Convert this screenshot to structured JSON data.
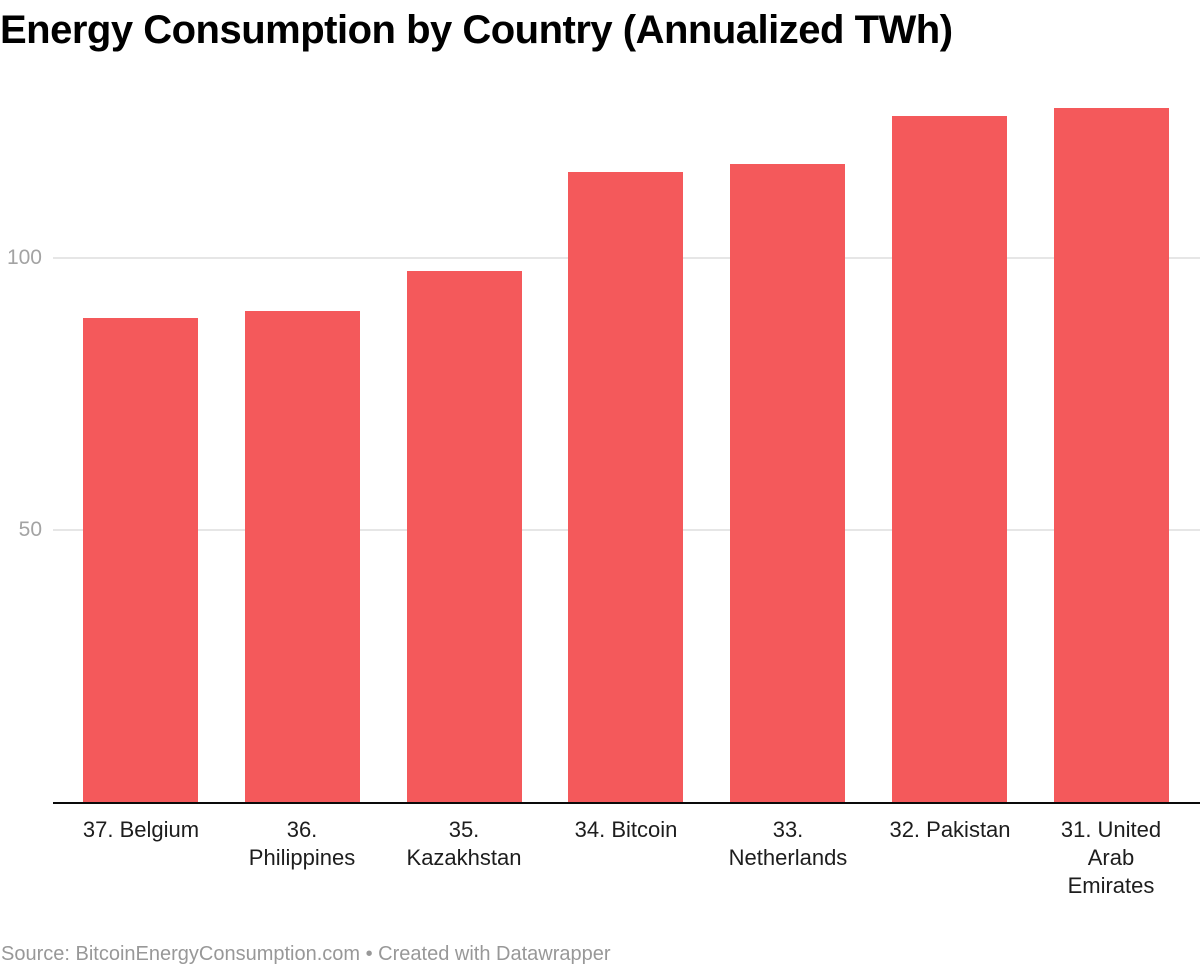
{
  "title": "Energy Consumption by Country (Annualized TWh)",
  "source_line": "Source: BitcoinEnergyConsumption.com • Created with Datawrapper",
  "colors": {
    "bar": "#f4595b",
    "axis_line": "#0a0a0a",
    "gridline": "#e6e6e6",
    "tick_label": "#a3a3a3",
    "x_label": "#1d1d1d",
    "title": "#000000",
    "source": "#989898",
    "background": "#ffffff"
  },
  "chart_data": {
    "type": "bar",
    "title": "Energy Consumption by Country (Annualized TWh)",
    "categories": [
      "37. Belgium",
      "36. Philippines",
      "35. Kazakhstan",
      "34. Bitcoin",
      "33. Netherlands",
      "32. Pakistan",
      "31. United Arab Emirates"
    ],
    "values": [
      88.9,
      90.3,
      97.7,
      115.9,
      117.2,
      126.1,
      127.6
    ],
    "xlabel": "",
    "ylabel": "",
    "ylim": [
      0,
      136
    ],
    "yticks": [
      50,
      100
    ],
    "grid": "horizontal",
    "legend": "none",
    "bar_color": "#f4595b"
  }
}
